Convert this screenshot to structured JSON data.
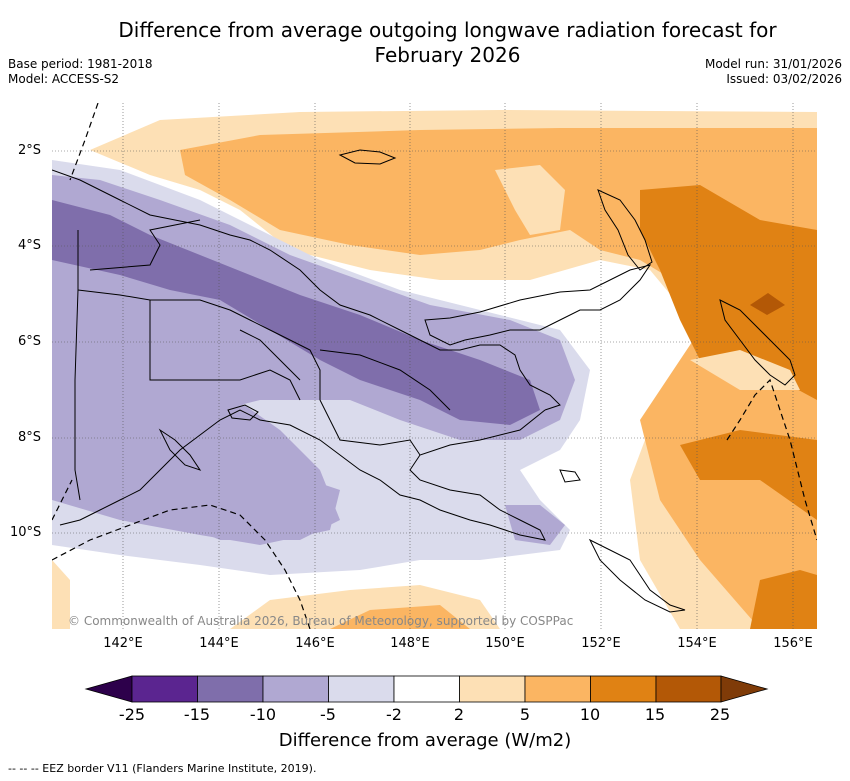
{
  "title": {
    "line1": "Difference from average outgoing longwave radiation forecast for",
    "line2": "February 2026"
  },
  "meta": {
    "base_period": "Base period: 1981-2018",
    "model": "Model: ACCESS-S2",
    "model_run": "Model run: 31/01/2026",
    "issued": "Issued: 03/02/2026"
  },
  "map": {
    "lat_labels": [
      "2°S",
      "4°S",
      "6°S",
      "8°S",
      "10°S"
    ],
    "lon_labels": [
      "142°E",
      "144°E",
      "146°E",
      "148°E",
      "150°E",
      "152°E",
      "154°E",
      "156°E"
    ],
    "copyright": "© Commonwealth of Australia 2026, Bureau of Meteorology, supported by COSPPac"
  },
  "colorbar": {
    "ticks": [
      "-25",
      "-15",
      "-10",
      "-5",
      "-2",
      "2",
      "5",
      "10",
      "15",
      "25"
    ],
    "colors": [
      "#5b2590",
      "#7f6eab",
      "#b0a8d2",
      "#dadbec",
      "#ffffff",
      "#fde0b5",
      "#fbb562",
      "#e08214",
      "#b35806"
    ],
    "under_color": "#2d004b",
    "over_color": "#7f3b08",
    "label": "Difference from average (W/m2)"
  },
  "footnote": "-- -- -- EEZ border V11 (Flanders Marine Institute, 2019)."
}
